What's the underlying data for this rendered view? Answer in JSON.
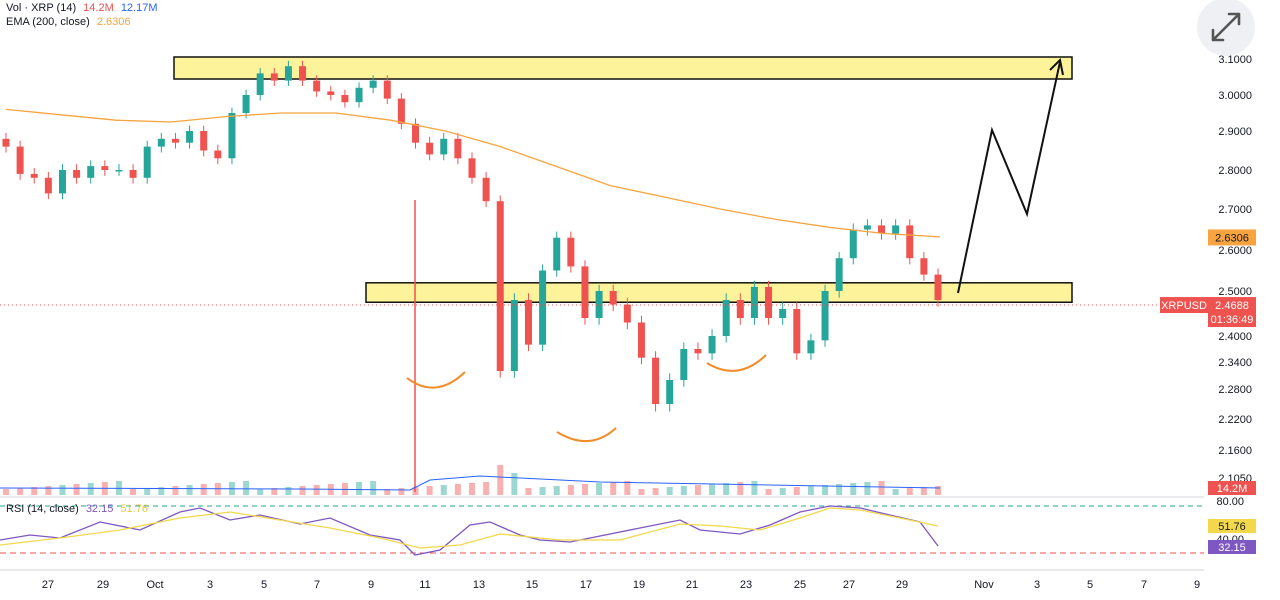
{
  "legend": {
    "vol": {
      "label": "Vol · XRP (14)",
      "v1": "14.2M",
      "v2": "12.17M"
    },
    "ema": {
      "label": "EMA (200, close)",
      "value": "2.6306"
    },
    "rsi": {
      "label": "RSI (14, close)",
      "v1": "32.15",
      "v2": "51.76"
    }
  },
  "colors": {
    "up": "#26a69a",
    "down": "#ef5350",
    "ema": "#f7a440",
    "rsi": "#7e57c2",
    "rsi_ma": "#f2d84a",
    "zone": "#fdf39b",
    "text": "#131722"
  },
  "icons": {
    "expand": "expand-arrows-icon"
  },
  "chart_data": {
    "type": "candlestick",
    "symbol": "XRPUSD",
    "last_price": "2.4688",
    "countdown": "01:36:49",
    "ema_value": "2.6306",
    "y_ticks": [
      "3.1000",
      "3.0000",
      "2.9000",
      "2.8000",
      "2.7000",
      "2.6000",
      "2.5000",
      "2.4000",
      "2.3400",
      "2.2800",
      "2.2200",
      "2.1600",
      "2.1050"
    ],
    "x_ticks": [
      "27",
      "29",
      "Oct",
      "3",
      "5",
      "7",
      "9",
      "11",
      "13",
      "15",
      "17",
      "19",
      "21",
      "23",
      "25",
      "27",
      "29",
      "Nov",
      "3",
      "5",
      "7",
      "9"
    ],
    "volume_label": "14.2M",
    "rsi_ticks": [
      "80.00",
      "40.00"
    ],
    "rsi_values": {
      "rsi": "32.15",
      "ma": "51.76"
    },
    "resistance_zone": [
      3.05,
      3.1
    ],
    "support_zone": [
      2.475,
      2.52
    ],
    "candles_close": [
      2.86,
      2.79,
      2.78,
      2.74,
      2.8,
      2.78,
      2.81,
      2.8,
      2.8,
      2.78,
      2.86,
      2.88,
      2.87,
      2.9,
      2.85,
      2.83,
      2.95,
      3.0,
      3.06,
      3.04,
      3.08,
      3.04,
      3.01,
      3.0,
      2.98,
      3.02,
      3.04,
      2.99,
      2.92,
      2.87,
      2.84,
      2.88,
      2.83,
      2.78,
      2.72,
      2.32,
      2.48,
      2.38,
      2.55,
      2.63,
      2.56,
      2.44,
      2.5,
      2.47,
      2.43,
      2.35,
      2.25,
      2.3,
      2.37,
      2.36,
      2.4,
      2.48,
      2.44,
      2.51,
      2.44,
      2.46,
      2.36,
      2.39,
      2.5,
      2.58,
      2.65,
      2.66,
      2.64,
      2.66,
      2.58,
      2.54,
      2.48
    ]
  }
}
